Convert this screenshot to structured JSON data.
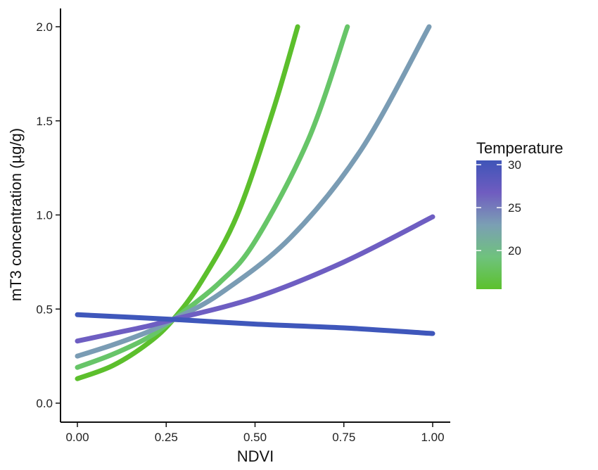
{
  "chart_data": {
    "type": "line",
    "title": "",
    "xlabel": "NDVI",
    "ylabel": "mT3 concentration (µg/g)",
    "xlim": [
      0.0,
      1.0
    ],
    "ylim": [
      0.0,
      2.0
    ],
    "x_ticks": [
      "0.00",
      "0.25",
      "0.50",
      "0.75",
      "1.00"
    ],
    "y_ticks": [
      "0.0",
      "0.5",
      "1.0",
      "1.5",
      "2.0"
    ],
    "grid": false,
    "legend": {
      "title": "Temperature",
      "type": "colorbar",
      "placement": "right",
      "range": [
        15.5,
        30.5
      ],
      "ticks": [
        "20",
        "25",
        "30"
      ],
      "colors": [
        "#5cc12d",
        "#6fc27d",
        "#7b9fb4",
        "#6f5cc0",
        "#3f55b8"
      ]
    },
    "series": [
      {
        "temperature": 16,
        "color": "#5cbf2c",
        "x": [
          0.0,
          0.1,
          0.2,
          0.27,
          0.35,
          0.45,
          0.55,
          0.62
        ],
        "y": [
          0.13,
          0.2,
          0.32,
          0.445,
          0.65,
          1.0,
          1.55,
          2.0
        ]
      },
      {
        "temperature": 19,
        "color": "#67c568",
        "x": [
          0.0,
          0.1,
          0.2,
          0.27,
          0.4,
          0.5,
          0.65,
          0.76
        ],
        "y": [
          0.19,
          0.26,
          0.35,
          0.445,
          0.64,
          0.86,
          1.4,
          2.0
        ]
      },
      {
        "temperature": 23,
        "color": "#7a9cb4",
        "x": [
          0.0,
          0.1,
          0.2,
          0.27,
          0.4,
          0.6,
          0.8,
          0.99
        ],
        "y": [
          0.25,
          0.31,
          0.38,
          0.445,
          0.58,
          0.88,
          1.35,
          2.0
        ]
      },
      {
        "temperature": 26,
        "color": "#6e5ec2",
        "x": [
          0.0,
          0.1,
          0.2,
          0.27,
          0.5,
          0.75,
          1.0
        ],
        "y": [
          0.33,
          0.37,
          0.41,
          0.445,
          0.56,
          0.75,
          0.99
        ]
      },
      {
        "temperature": 30,
        "color": "#3f57bb",
        "x": [
          0.0,
          0.27,
          0.5,
          0.75,
          1.0
        ],
        "y": [
          0.47,
          0.445,
          0.42,
          0.4,
          0.37
        ]
      }
    ]
  }
}
